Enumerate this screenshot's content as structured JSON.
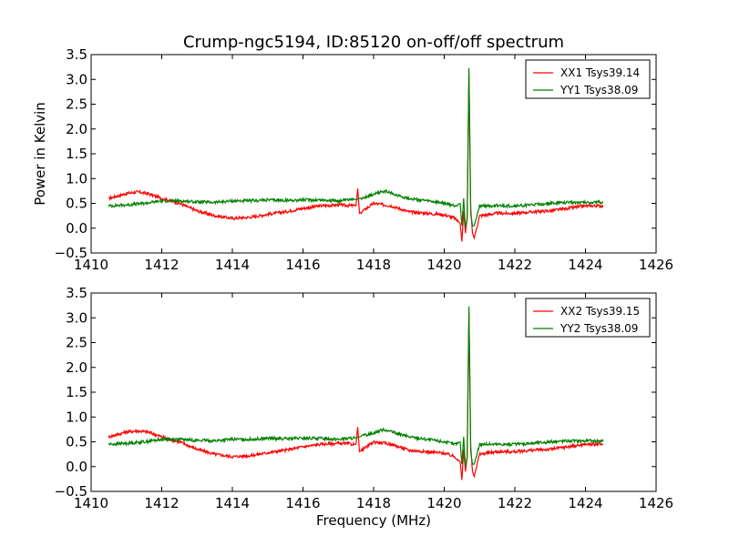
{
  "chart_data": {
    "type": "line",
    "title": "Crump-ngc5194, ID:85120 on-off/off spectrum",
    "xlabel": "Frequency (MHz)",
    "ylabel": "Power in Kelvin",
    "xlim": [
      1410,
      1426
    ],
    "ylim": [
      -0.5,
      3.5
    ],
    "xticks": [
      "1410",
      "1412",
      "1414",
      "1416",
      "1418",
      "1420",
      "1422",
      "1424",
      "1426"
    ],
    "yticks": [
      "−0.5",
      "0.0",
      "0.5",
      "1.0",
      "1.5",
      "2.0",
      "2.5",
      "3.0",
      "3.5"
    ],
    "grid": false,
    "legend": "top-right",
    "colors": {
      "red": "#ff0000",
      "green": "#008000"
    },
    "panels": [
      {
        "series": [
          {
            "name": "XX1 Tsys39.14",
            "color": "#ff0000",
            "x": [
              1410.5,
              1411.0,
              1411.3,
              1411.6,
              1412.0,
              1412.5,
              1413.0,
              1413.5,
              1414.0,
              1414.5,
              1415.0,
              1415.5,
              1416.0,
              1416.5,
              1417.0,
              1417.5,
              1417.55,
              1417.6,
              1418.0,
              1418.5,
              1419.0,
              1419.5,
              1420.0,
              1420.3,
              1420.45,
              1420.5,
              1420.55,
              1420.6,
              1420.65,
              1420.7,
              1420.75,
              1420.8,
              1420.85,
              1421.0,
              1421.5,
              1422.0,
              1422.5,
              1423.0,
              1423.5,
              1424.0,
              1424.5
            ],
            "y": [
              0.6,
              0.7,
              0.73,
              0.7,
              0.6,
              0.5,
              0.35,
              0.25,
              0.2,
              0.22,
              0.28,
              0.33,
              0.4,
              0.45,
              0.47,
              0.45,
              0.8,
              0.3,
              0.5,
              0.45,
              0.33,
              0.3,
              0.27,
              0.2,
              0.1,
              -0.27,
              0.35,
              -0.1,
              0.2,
              3.1,
              0.4,
              -0.1,
              -0.2,
              0.25,
              0.3,
              0.3,
              0.33,
              0.35,
              0.4,
              0.45,
              0.45
            ]
          },
          {
            "name": "YY1 Tsys38.09",
            "color": "#008000",
            "x": [
              1410.5,
              1411.0,
              1411.5,
              1412.0,
              1412.5,
              1413.0,
              1413.5,
              1414.0,
              1414.5,
              1415.0,
              1415.5,
              1416.0,
              1416.5,
              1417.0,
              1417.5,
              1418.0,
              1418.3,
              1418.6,
              1419.0,
              1419.5,
              1420.0,
              1420.3,
              1420.45,
              1420.5,
              1420.55,
              1420.6,
              1420.65,
              1420.7,
              1420.75,
              1420.8,
              1420.85,
              1421.0,
              1421.5,
              1422.0,
              1422.5,
              1423.0,
              1423.5,
              1424.0,
              1424.5
            ],
            "y": [
              0.45,
              0.47,
              0.5,
              0.55,
              0.55,
              0.53,
              0.52,
              0.55,
              0.55,
              0.57,
              0.56,
              0.57,
              0.57,
              0.55,
              0.58,
              0.68,
              0.75,
              0.68,
              0.6,
              0.55,
              0.5,
              0.45,
              0.5,
              0.05,
              0.6,
              0.0,
              0.2,
              3.23,
              0.3,
              0.05,
              0.05,
              0.45,
              0.45,
              0.45,
              0.47,
              0.5,
              0.52,
              0.52,
              0.52
            ]
          }
        ]
      },
      {
        "series": [
          {
            "name": "XX2 Tsys39.15",
            "color": "#ff0000",
            "x": [
              1410.5,
              1411.0,
              1411.3,
              1411.6,
              1412.0,
              1412.5,
              1413.0,
              1413.5,
              1414.0,
              1414.5,
              1415.0,
              1415.5,
              1416.0,
              1416.5,
              1417.0,
              1417.5,
              1417.55,
              1417.6,
              1418.0,
              1418.5,
              1419.0,
              1419.5,
              1420.0,
              1420.3,
              1420.45,
              1420.5,
              1420.55,
              1420.6,
              1420.65,
              1420.7,
              1420.75,
              1420.8,
              1420.85,
              1421.0,
              1421.5,
              1422.0,
              1422.5,
              1423.0,
              1423.5,
              1424.0,
              1424.5
            ],
            "y": [
              0.6,
              0.7,
              0.72,
              0.7,
              0.6,
              0.5,
              0.35,
              0.25,
              0.2,
              0.22,
              0.28,
              0.33,
              0.4,
              0.45,
              0.47,
              0.45,
              0.8,
              0.3,
              0.5,
              0.45,
              0.33,
              0.3,
              0.27,
              0.2,
              0.1,
              -0.27,
              0.35,
              -0.1,
              0.2,
              3.1,
              0.4,
              -0.1,
              -0.2,
              0.25,
              0.3,
              0.3,
              0.33,
              0.35,
              0.4,
              0.45,
              0.45
            ]
          },
          {
            "name": "YY2 Tsys38.09",
            "color": "#008000",
            "x": [
              1410.5,
              1411.0,
              1411.5,
              1412.0,
              1412.5,
              1413.0,
              1413.5,
              1414.0,
              1414.5,
              1415.0,
              1415.5,
              1416.0,
              1416.5,
              1417.0,
              1417.5,
              1418.0,
              1418.3,
              1418.6,
              1419.0,
              1419.5,
              1420.0,
              1420.3,
              1420.45,
              1420.5,
              1420.55,
              1420.6,
              1420.65,
              1420.7,
              1420.75,
              1420.8,
              1420.85,
              1421.0,
              1421.5,
              1422.0,
              1422.5,
              1423.0,
              1423.5,
              1424.0,
              1424.5
            ],
            "y": [
              0.45,
              0.47,
              0.5,
              0.55,
              0.55,
              0.53,
              0.52,
              0.55,
              0.55,
              0.57,
              0.56,
              0.57,
              0.57,
              0.55,
              0.58,
              0.68,
              0.75,
              0.68,
              0.6,
              0.55,
              0.5,
              0.45,
              0.5,
              0.05,
              0.6,
              0.0,
              0.2,
              3.23,
              0.3,
              0.05,
              0.05,
              0.45,
              0.45,
              0.45,
              0.47,
              0.5,
              0.52,
              0.52,
              0.52
            ]
          }
        ]
      }
    ]
  }
}
